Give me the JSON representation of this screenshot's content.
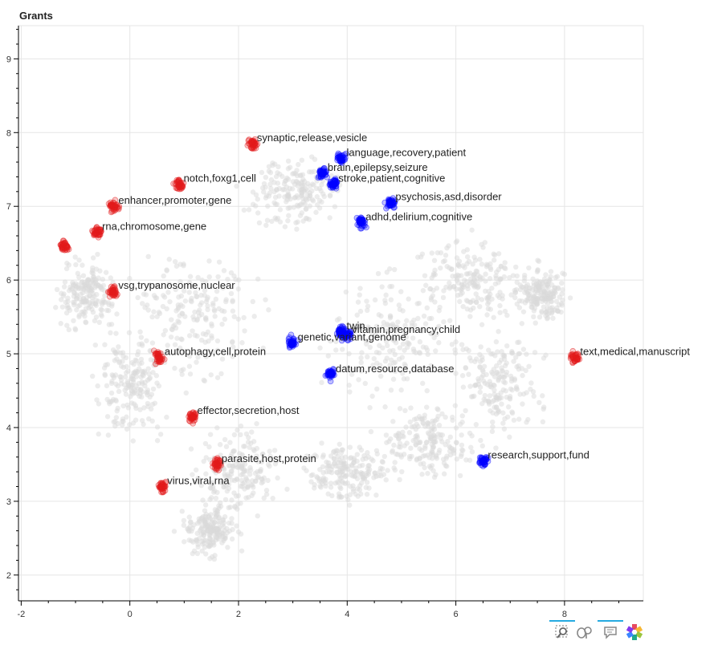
{
  "chart_data": {
    "type": "scatter",
    "title": "Grants",
    "xlim": [
      -2.05,
      9.45
    ],
    "ylim": [
      1.65,
      9.45
    ],
    "x_ticks": [
      -2,
      0,
      2,
      4,
      6,
      8
    ],
    "y_ticks": [
      2,
      3,
      4,
      5,
      6,
      7,
      8,
      9
    ],
    "grid": true,
    "series": [
      {
        "color": "#e31a1c",
        "clusters": [
          {
            "label": "synaptic,release,vesicle",
            "x": 2.25,
            "y": 7.85
          },
          {
            "label": "notch,foxg1,cell",
            "x": 0.9,
            "y": 7.3
          },
          {
            "label": "enhancer,promoter,gene",
            "x": -0.3,
            "y": 7.0
          },
          {
            "label": "rna,chromosome,gene",
            "x": -0.6,
            "y": 6.65
          },
          {
            "label": "",
            "x": -1.2,
            "y": 6.45
          },
          {
            "label": "vsg,trypanosome,nuclear",
            "x": -0.3,
            "y": 5.85
          },
          {
            "label": "autophagy,cell,protein",
            "x": 0.55,
            "y": 4.95
          },
          {
            "label": "text,medical,manuscript",
            "x": 8.2,
            "y": 4.95
          },
          {
            "label": "effector,secretion,host",
            "x": 1.15,
            "y": 4.15
          },
          {
            "label": "parasite,host,protein",
            "x": 1.6,
            "y": 3.5
          },
          {
            "label": "virus,viral,rna",
            "x": 0.6,
            "y": 3.2
          }
        ]
      },
      {
        "color": "#0000ff",
        "clusters": [
          {
            "label": "language,recovery,patient",
            "x": 3.9,
            "y": 7.65
          },
          {
            "label": "brain,epilepsy,seizure",
            "x": 3.55,
            "y": 7.45
          },
          {
            "label": "stroke,patient,cognitive",
            "x": 3.75,
            "y": 7.3
          },
          {
            "label": "psychosis,asd,disorder",
            "x": 4.8,
            "y": 7.05
          },
          {
            "label": "adhd,delirium,cognitive",
            "x": 4.25,
            "y": 6.78
          },
          {
            "label": "twin",
            "x": 3.9,
            "y": 5.3
          },
          {
            "label": "vitamin,pregnancy,child",
            "x": 4.0,
            "y": 5.25
          },
          {
            "label": "genetic,variant,genome",
            "x": 3.0,
            "y": 5.15
          },
          {
            "label": "datum,resource,database",
            "x": 3.7,
            "y": 4.72
          },
          {
            "label": "research,support,fund",
            "x": 6.5,
            "y": 3.55
          }
        ]
      }
    ]
  },
  "toolbar": {
    "tools": [
      "box-zoom-icon",
      "wheel-zoom-icon",
      "hover-icon",
      "bokeh-logo-icon"
    ]
  }
}
